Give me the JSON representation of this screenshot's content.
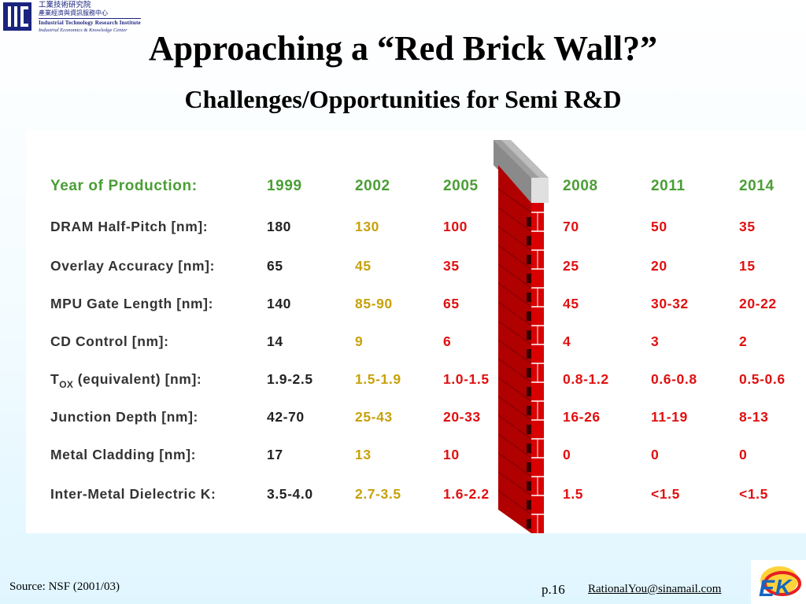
{
  "logo": {
    "line1": "工業技術研究院",
    "line2": "產業經濟與資訊服務中心",
    "line3": "Industrial Technology Research Institute",
    "line4": "Industrial Economics & Knowledge Center"
  },
  "title": "Approaching a “Red Brick Wall?”",
  "subtitle": "Challenges/Opportunities for Semi R&D",
  "table": {
    "header_label": "Year of Production:",
    "years": [
      "1999",
      "2002",
      "2005",
      "2008",
      "2011",
      "2014"
    ],
    "rows": [
      {
        "label": "DRAM Half-Pitch [nm]:",
        "values": [
          "180",
          "130",
          "100",
          "70",
          "50",
          "35"
        ]
      },
      {
        "label": "Overlay Accuracy [nm]:",
        "values": [
          "65",
          "45",
          "35",
          "25",
          "20",
          "15"
        ]
      },
      {
        "label": "MPU Gate Length [nm]:",
        "values": [
          "140",
          "85-90",
          "65",
          "45",
          "30-32",
          "20-22"
        ]
      },
      {
        "label": "CD Control [nm]:",
        "values": [
          "14",
          "9",
          "6",
          "4",
          "3",
          "2"
        ]
      },
      {
        "label_main": "T",
        "label_sub": "OX",
        "label_rest": " (equivalent) [nm]:",
        "values": [
          "1.9-2.5",
          "1.5-1.9",
          "1.0-1.5",
          "0.8-1.2",
          "0.6-0.8",
          "0.5-0.6"
        ]
      },
      {
        "label": "Junction Depth [nm]:",
        "values": [
          "42-70",
          "25-43",
          "20-33",
          "16-26",
          "11-19",
          "8-13"
        ]
      },
      {
        "label": "Metal Cladding [nm]:",
        "values": [
          "17",
          "13",
          "10",
          "0",
          "0",
          "0"
        ]
      },
      {
        "label": "Inter-Metal Dielectric K:",
        "values": [
          "3.5-4.0",
          "2.7-3.5",
          "1.6-2.2",
          "1.5",
          "<1.5",
          "<1.5"
        ]
      }
    ]
  },
  "colors": {
    "header_green": "#4a9e35",
    "value_black": "#222222",
    "value_yellow": "#c8a10a",
    "value_red": "#e01010",
    "brick_red": "#cc0000"
  },
  "footer": {
    "source": "Source: NSF (2001/03)",
    "page": "p.16",
    "email": "RationalYou@sinamail.com"
  },
  "icons": {
    "logo": "itri-logo-icon",
    "wall": "brick-wall-icon",
    "ek": "ek-logo-icon"
  }
}
